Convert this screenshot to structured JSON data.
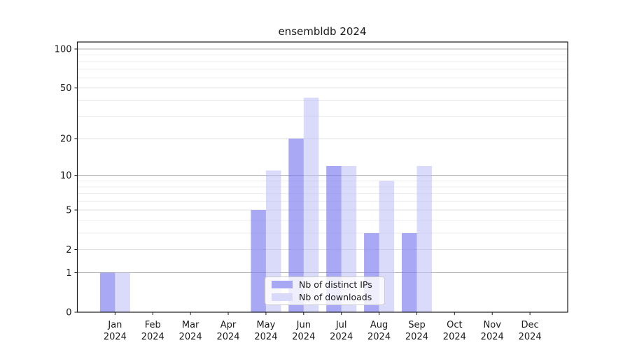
{
  "title": "ensembldb 2024",
  "chart_data": {
    "type": "bar",
    "title": "ensembldb 2024",
    "months": [
      "Jan",
      "Feb",
      "Mar",
      "Apr",
      "May",
      "Jun",
      "Jul",
      "Aug",
      "Sep",
      "Oct",
      "Nov",
      "Dec"
    ],
    "year": "2024",
    "categories": [
      "Jan 2024",
      "Feb 2024",
      "Mar 2024",
      "Apr 2024",
      "May 2024",
      "Jun 2024",
      "Jul 2024",
      "Aug 2024",
      "Sep 2024",
      "Oct 2024",
      "Nov 2024",
      "Dec 2024"
    ],
    "series": [
      {
        "name": "Nb of distinct IPs",
        "fill": "rgba(122,122,240,0.65)",
        "swatch": "#a7a7f5",
        "values": [
          1,
          0,
          0,
          0,
          5,
          20,
          12,
          3,
          3,
          0,
          0,
          0
        ]
      },
      {
        "name": "Nb of downloads",
        "fill": "rgba(187,187,246,0.55)",
        "swatch": "#d9d9fa",
        "values": [
          1,
          0,
          0,
          0,
          11,
          42,
          12,
          9,
          12,
          0,
          0,
          0
        ]
      }
    ],
    "y_axis": {
      "scale": "log1p (position proportional to log10(value+1))",
      "tick_labels": [
        "100",
        "50",
        "20",
        "10",
        "5",
        "2",
        "1",
        "0"
      ],
      "ticks": [
        100,
        50,
        20,
        10,
        5,
        2,
        1,
        0
      ],
      "major_gridlines": [
        100,
        10,
        1
      ],
      "mid_gridlines": [
        50,
        20,
        5,
        2
      ],
      "minor_gridlines": [
        90,
        80,
        70,
        60,
        40,
        30,
        9,
        8,
        7,
        6,
        4,
        3
      ],
      "ylim": [
        0,
        113
      ]
    },
    "legend": {
      "position": "bottom-center",
      "entries": [
        "Nb of distinct IPs",
        "Nb of downloads"
      ]
    },
    "grid": true
  },
  "colors": {
    "background": "#ffffff",
    "spine": "#1a1a1a",
    "tick_text": "#1a1a1a",
    "grid_major": "#b3b3b3",
    "grid_mid": "#e1e1e1",
    "grid_minor": "#ededed"
  }
}
